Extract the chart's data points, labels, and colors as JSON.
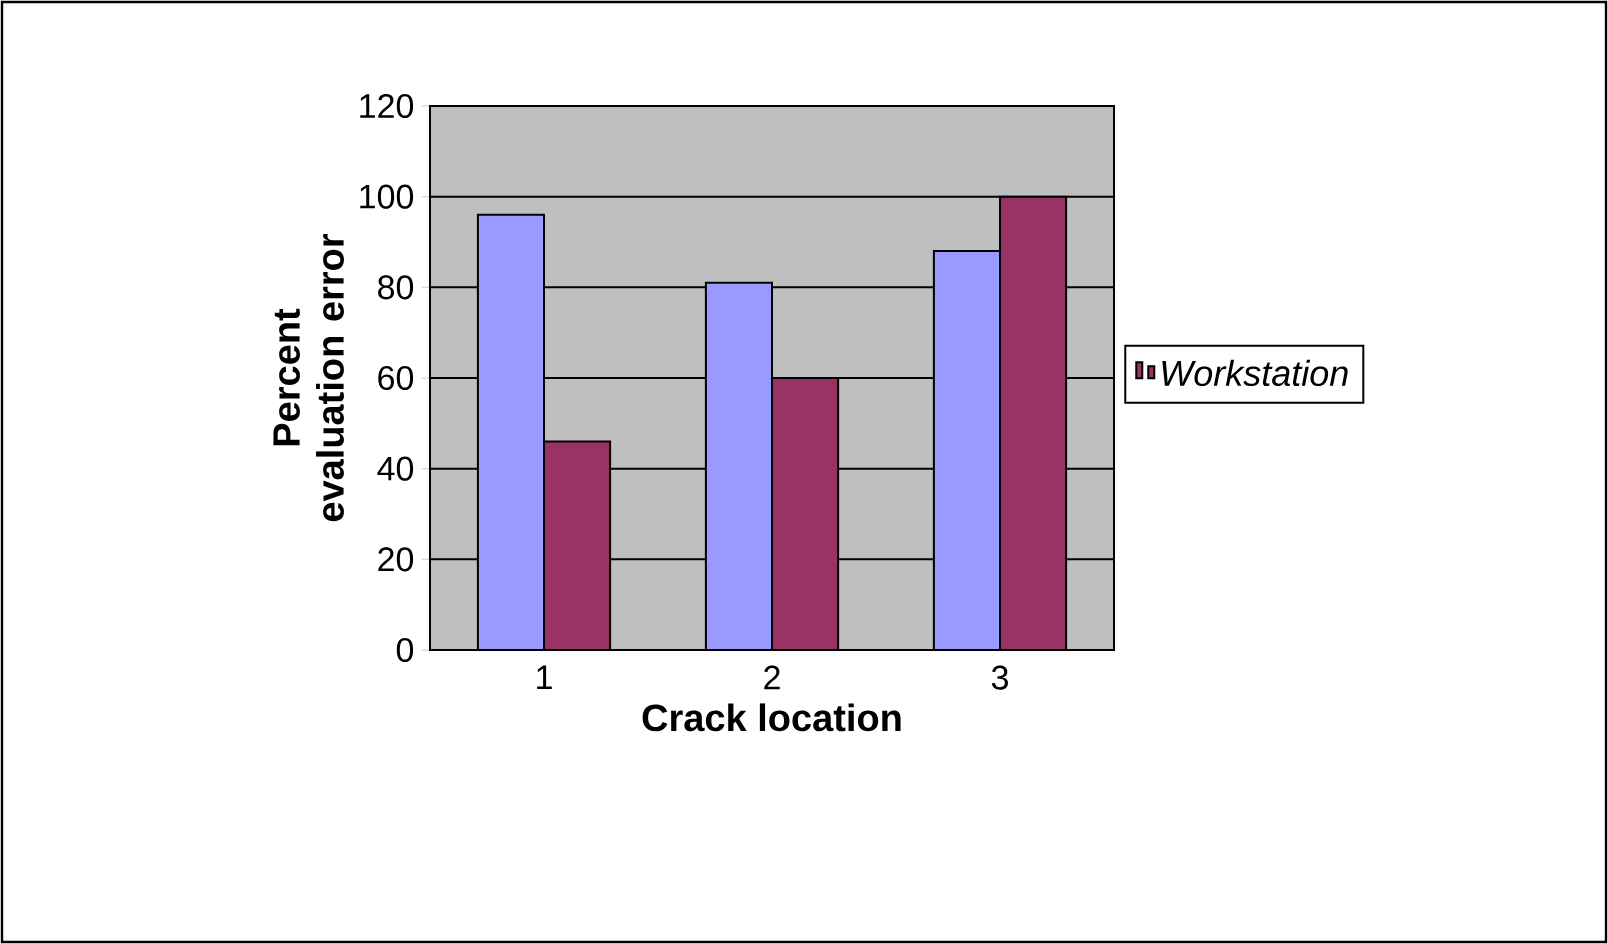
{
  "chart_data": {
    "type": "bar",
    "xlabel": "Crack location",
    "ylabel": "Percent evaluation error",
    "categories": [
      "1",
      "2",
      "3"
    ],
    "series": [
      {
        "color": "#9999ff",
        "values": [
          96,
          81,
          88
        ]
      },
      {
        "name": "Workstation",
        "color": "#993366",
        "values": [
          46,
          60,
          100
        ]
      }
    ],
    "ylim": [
      0,
      120
    ],
    "yticks": [
      0,
      20,
      40,
      60,
      80,
      100,
      120
    ],
    "grid": "y",
    "legend": "right"
  }
}
